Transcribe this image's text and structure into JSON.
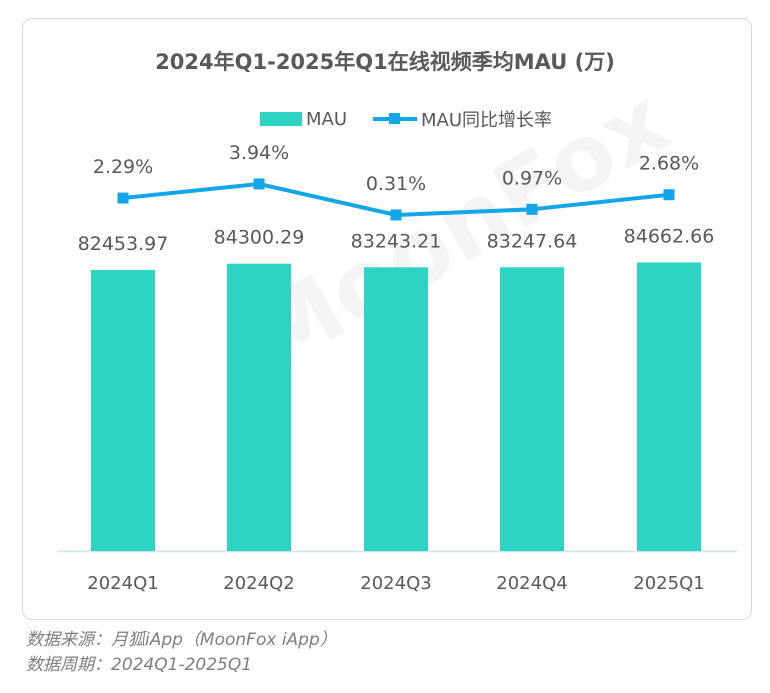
{
  "chart_data": {
    "type": "bar+line",
    "title": "2024年Q1-2025年Q1在线视频季均MAU (万)",
    "categories": [
      "2024Q1",
      "2024Q2",
      "2024Q3",
      "2024Q4",
      "2025Q1"
    ],
    "series": [
      {
        "name": "MAU",
        "type": "bar",
        "values": [
          82453.97,
          84300.29,
          83243.21,
          83247.64,
          84662.66
        ],
        "labels": [
          "82453.97",
          "84300.29",
          "83243.21",
          "83247.64",
          "84662.66"
        ],
        "color": "#2dd4c4"
      },
      {
        "name": "MAU同比增长率",
        "type": "line",
        "values": [
          2.29,
          3.94,
          0.31,
          0.97,
          2.68
        ],
        "labels": [
          "2.29%",
          "3.94%",
          "0.31%",
          "0.97%",
          "2.68%"
        ],
        "color": "#12a5e8"
      }
    ],
    "legend": "top-center",
    "grid": false
  },
  "watermark": "MoonFox",
  "footer": {
    "source": "数据来源：月狐iApp（MoonFox iApp）",
    "period": "数据周期：2024Q1-2025Q1"
  }
}
